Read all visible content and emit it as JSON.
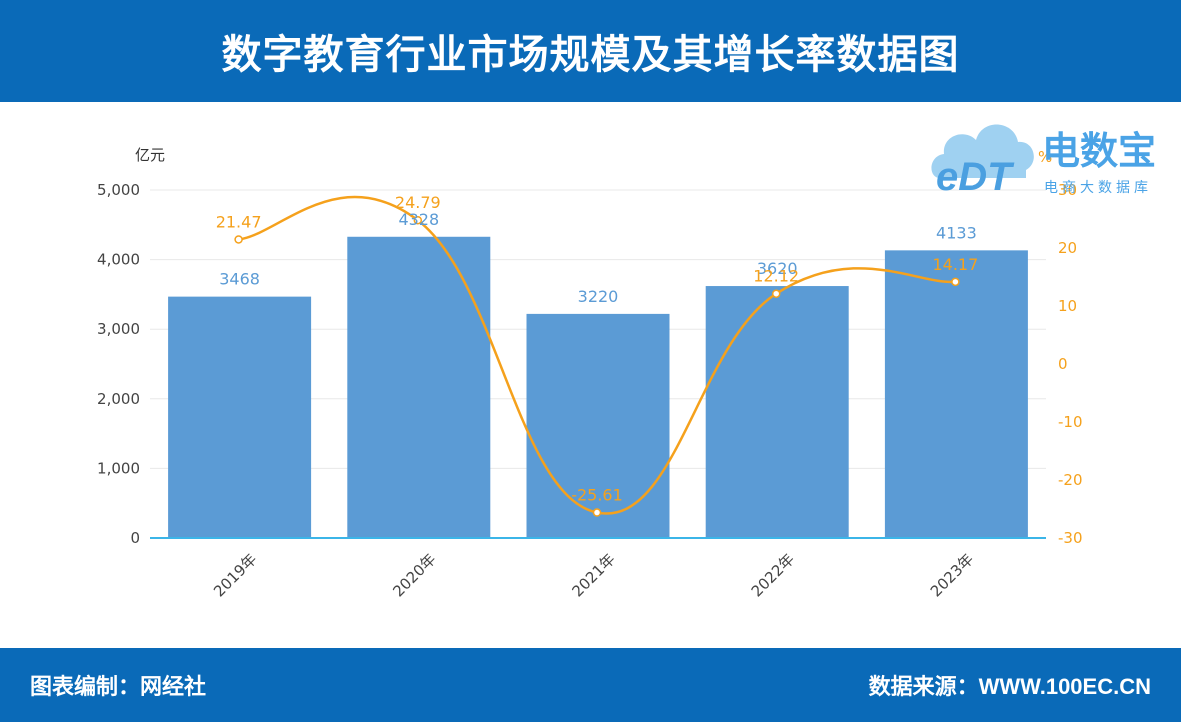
{
  "header": {
    "title": "数字教育行业市场规模及其增长率数据图"
  },
  "footer": {
    "left": "图表编制：网经社",
    "right": "数据来源：WWW.100EC.CN"
  },
  "logo": {
    "mark": "eDT",
    "name": "电数宝",
    "sub": "电商大数据库"
  },
  "colors": {
    "header_bg": "#0a6ab8",
    "bar": "#5b9bd5",
    "line": "#f5a11c",
    "axis": "#3bb5e8"
  },
  "chart_data": {
    "type": "bar",
    "categories": [
      "2019年",
      "2020年",
      "2021年",
      "2022年",
      "2023年"
    ],
    "series": [
      {
        "values": [
          3468,
          4328,
          3220,
          3620,
          4133
        ],
        "axis": "left",
        "render": "bar"
      },
      {
        "values": [
          21.47,
          24.79,
          -25.61,
          12.12,
          14.17
        ],
        "axis": "right",
        "render": "line"
      }
    ],
    "ylabel_left": "亿元",
    "ylabel_right": "%",
    "ylim_left": [
      0,
      5000
    ],
    "ylim_right": [
      -30,
      30
    ],
    "yticks_left": [
      "0",
      "1,000",
      "2,000",
      "3,000",
      "4,000",
      "5,000"
    ],
    "yticks_right": [
      "-30",
      "-20",
      "-10",
      "0",
      "10",
      "20",
      "30"
    ],
    "grid": true
  }
}
